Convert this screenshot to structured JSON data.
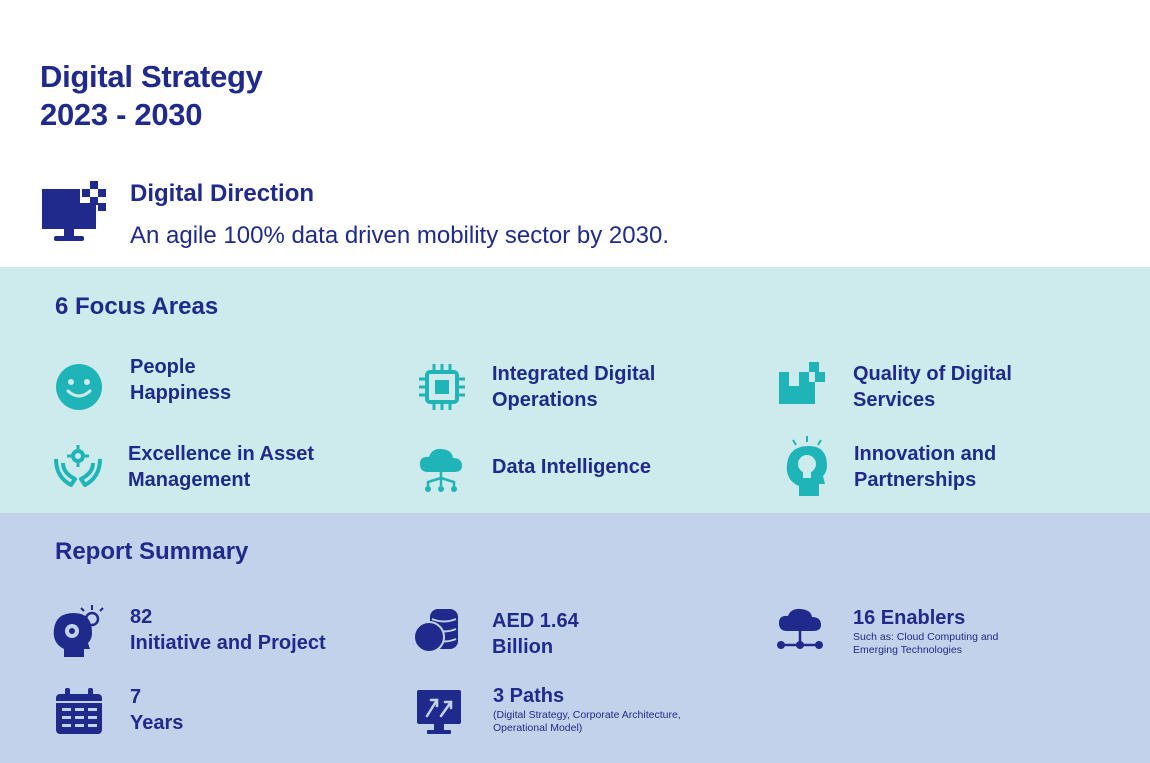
{
  "header": {
    "title_line1": "Digital Strategy",
    "title_line2": "2023 - 2030"
  },
  "direction": {
    "heading": "Digital Direction",
    "text": "An agile 100% data driven mobility sector by 2030.",
    "icon": "monitor-pixels-icon"
  },
  "focus": {
    "title": "6 Focus Areas",
    "items": [
      {
        "line1": "People",
        "line2": "Happiness",
        "icon": "smiley-icon"
      },
      {
        "line1": "Integrated Digital",
        "line2": "Operations",
        "icon": "chip-icon"
      },
      {
        "line1": "Quality of Digital",
        "line2": "Services",
        "icon": "pixel-blocks-icon"
      },
      {
        "line1": "Excellence in Asset",
        "line2": "Management",
        "icon": "hands-gear-icon"
      },
      {
        "line1": "Data Intelligence",
        "icon": "cloud-network-icon"
      },
      {
        "line1": "Innovation and",
        "line2": "Partnerships",
        "icon": "head-bulb-icon"
      }
    ]
  },
  "summary": {
    "title": "Report Summary",
    "items": [
      {
        "line1": "82",
        "line2": "Initiative and Project",
        "icon": "head-gear-bulb-icon"
      },
      {
        "line1": "AED 1.64",
        "line2": "Billion",
        "icon": "coins-database-icon"
      },
      {
        "line1": "16 Enablers",
        "note1": "Such as: Cloud Computing and",
        "note2": "Emerging Technologies",
        "icon": "cloud-nodes-icon"
      },
      {
        "line1": "7",
        "line2": "Years",
        "icon": "calendar-icon"
      },
      {
        "line1": "3 Paths",
        "note1": "(Digital Strategy, Corporate Architecture,",
        "note2": "Operational Model)",
        "icon": "monitor-arrows-icon"
      }
    ]
  },
  "colors": {
    "navy": "#1f2a8c",
    "teal": "#1fb5b8",
    "focus_bg": "#cdebec",
    "summary_bg": "#c3d2eb"
  }
}
